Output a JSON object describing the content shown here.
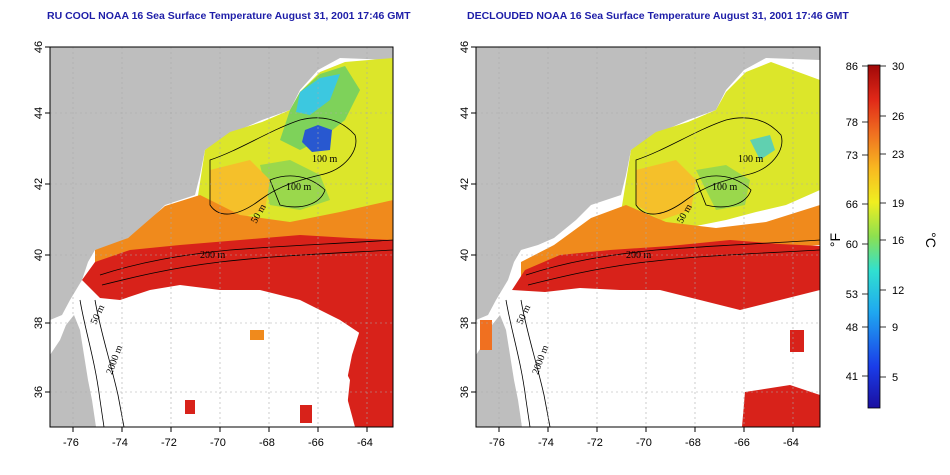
{
  "panels": [
    {
      "title": "RU COOL NOAA 16 Sea Surface Temperature August 31, 2001 17:46 GMT",
      "contour_labels": [
        "100 m",
        "100 m",
        "50 m",
        "200 m",
        "50 m",
        "2000 m"
      ]
    },
    {
      "title": "DECLOUDED NOAA 16 Sea Surface Temperature August 31, 2001 17:46 GMT",
      "contour_labels": [
        "100 m",
        "100 m",
        "50 m",
        "200 m",
        "50 m",
        "2000 m"
      ]
    }
  ],
  "axes": {
    "lon_ticks": [
      "-76",
      "-74",
      "-72",
      "-70",
      "-68",
      "-66",
      "-64"
    ],
    "lat_ticks": [
      "36",
      "38",
      "40",
      "42",
      "44",
      "46"
    ]
  },
  "colorbar": {
    "fahrenheit_label": "°F",
    "celsius_label": "°C",
    "fahrenheit_ticks": [
      "86",
      "78",
      "73",
      "66",
      "60",
      "53",
      "48",
      "41"
    ],
    "celsius_ticks": [
      "30",
      "26",
      "23",
      "19",
      "16",
      "12",
      "9",
      "5"
    ],
    "range_c": [
      3,
      30
    ]
  },
  "colors": {
    "land": "#bebebe",
    "cloud": "#ffffff",
    "title": "#1d1da8",
    "warm": "#d41a10",
    "orange": "#f07a18",
    "yellow": "#f0e21a",
    "green": "#8ad23c",
    "cyan": "#38d0e0",
    "blue": "#2050d8"
  }
}
